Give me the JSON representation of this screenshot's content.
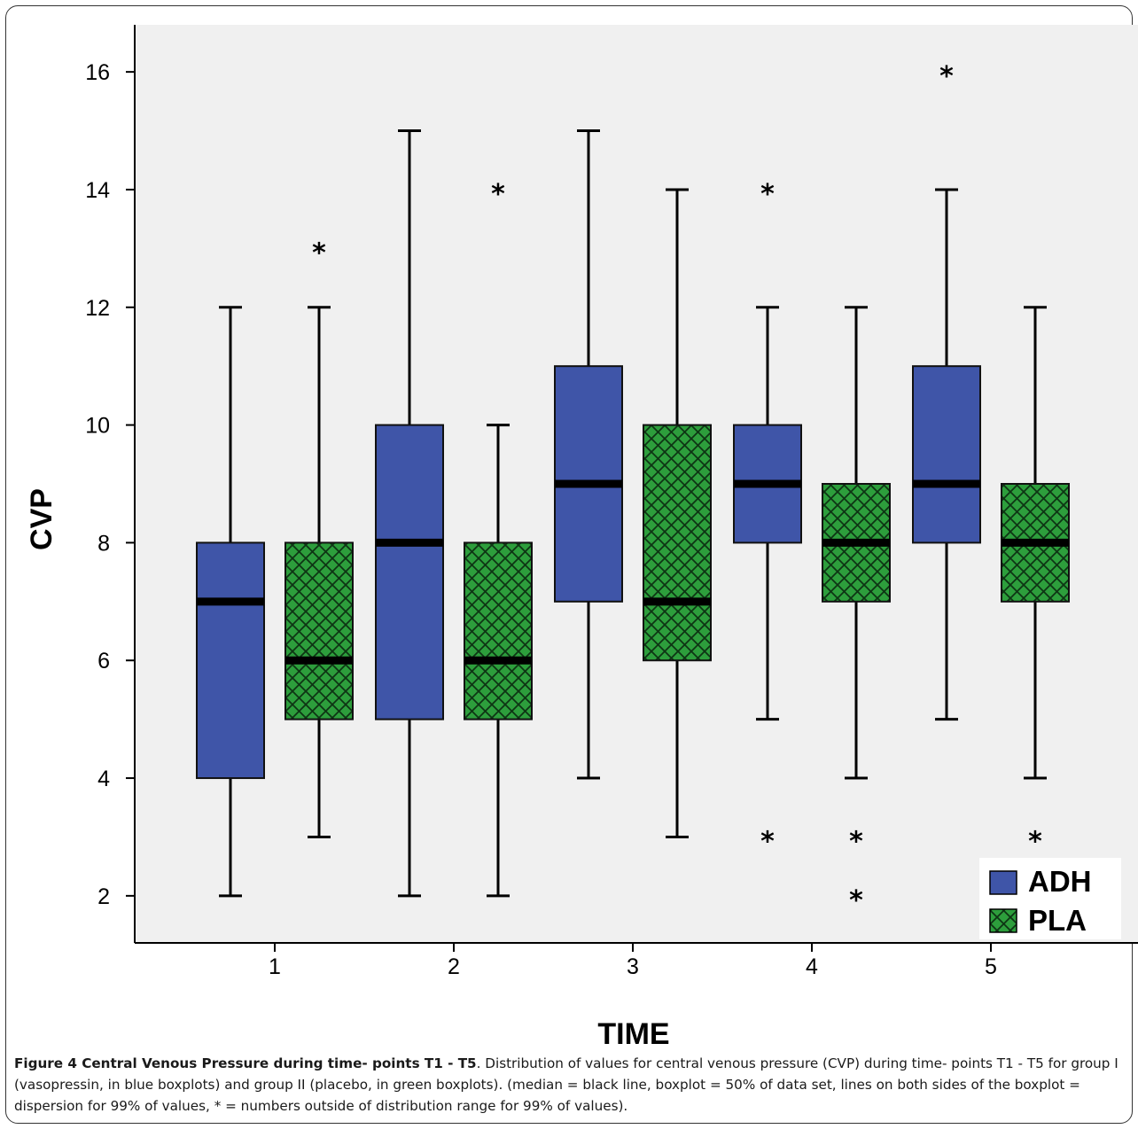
{
  "chart_data": {
    "type": "boxplot",
    "xlabel": "TIME",
    "ylabel": "CVP",
    "ylim": [
      1.2,
      16.8
    ],
    "yticks": [
      2,
      4,
      6,
      8,
      10,
      12,
      14,
      16
    ],
    "categories": [
      "1",
      "2",
      "3",
      "4",
      "5"
    ],
    "grid": false,
    "legend_position": "bottom-right",
    "series": [
      {
        "name": "ADH",
        "color": "#3f55a8",
        "pattern": "solid",
        "boxes": [
          {
            "min": 2,
            "q1": 4,
            "median": 7,
            "q3": 8,
            "max": 12,
            "outliers": []
          },
          {
            "min": 2,
            "q1": 5,
            "median": 8,
            "q3": 10,
            "max": 15,
            "outliers": []
          },
          {
            "min": 4,
            "q1": 7,
            "median": 9,
            "q3": 11,
            "max": 15,
            "outliers": []
          },
          {
            "min": 5,
            "q1": 8,
            "median": 9,
            "q3": 10,
            "max": 12,
            "outliers": [
              14,
              3
            ]
          },
          {
            "min": 5,
            "q1": 8,
            "median": 9,
            "q3": 11,
            "max": 14,
            "outliers": [
              16
            ]
          }
        ]
      },
      {
        "name": "PLA",
        "color": "#2d9e3c",
        "pattern": "crosshatch",
        "boxes": [
          {
            "min": 3,
            "q1": 5,
            "median": 6,
            "q3": 8,
            "max": 12,
            "outliers": [
              13
            ]
          },
          {
            "min": 2,
            "q1": 5,
            "median": 6,
            "q3": 8,
            "max": 10,
            "outliers": [
              14
            ]
          },
          {
            "min": 3,
            "q1": 6,
            "median": 7,
            "q3": 10,
            "max": 14,
            "outliers": []
          },
          {
            "min": 4,
            "q1": 7,
            "median": 8,
            "q3": 9,
            "max": 12,
            "outliers": [
              3,
              2
            ]
          },
          {
            "min": 4,
            "q1": 7,
            "median": 8,
            "q3": 9,
            "max": 12,
            "outliers": [
              3
            ]
          }
        ]
      }
    ]
  },
  "caption": {
    "bold": "Figure 4 Central Venous Pressure during time- points T1 - T5",
    "text": ". Distribution of values for central venous pressure (CVP) during time- points T1 - T5 for group I (vasopressin, in blue boxplots) and group II (placebo, in green boxplots). (median = black line, boxplot = 50% of data set, lines on both sides of the boxplot = dispersion for 99% of values, * = numbers outside of distribution range for 99% of values)."
  }
}
